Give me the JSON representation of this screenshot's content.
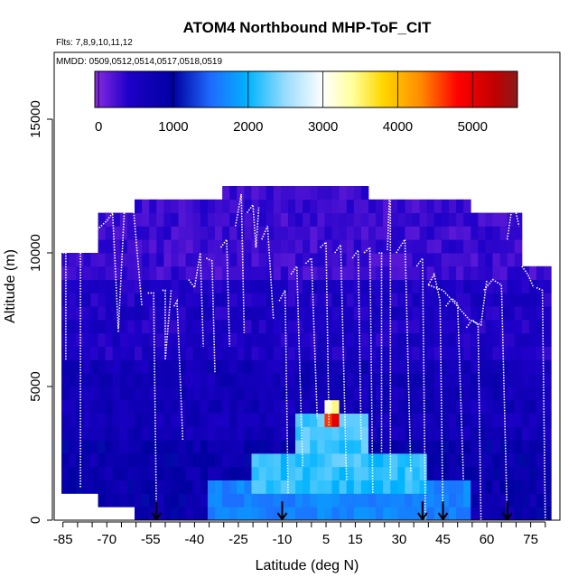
{
  "chart_data": {
    "type": "heatmap",
    "title": "ATOM4 Northbound MHP-ToF_CIT",
    "subtitle_flights": "Flts: 7,8,9,10,11,12",
    "subtitle_dates": "MMDD: 0509,0512,0514,0517,0518,0519",
    "xlabel": "Latitude (deg N)",
    "ylabel": "Altitude (m)",
    "xlim": [
      -88,
      85
    ],
    "ylim": [
      0,
      17500
    ],
    "x_ticks": [
      -85,
      -70,
      -55,
      -40,
      -25,
      -10,
      5,
      15,
      30,
      45,
      60,
      75
    ],
    "x_minor_step": 5,
    "y_ticks": [
      0,
      5000,
      10000,
      15000
    ],
    "colorbar": {
      "ticks": [
        0,
        1000,
        2000,
        3000,
        4000,
        5000
      ],
      "min": -50,
      "max": 5600,
      "stops": [
        {
          "v": -50,
          "c": "#8a2be2"
        },
        {
          "v": 400,
          "c": "#1e00c8"
        },
        {
          "v": 1000,
          "c": "#0000a0"
        },
        {
          "v": 1500,
          "c": "#1e6bff"
        },
        {
          "v": 2000,
          "c": "#00b4ff"
        },
        {
          "v": 2500,
          "c": "#9adcff"
        },
        {
          "v": 3000,
          "c": "#ffffff"
        },
        {
          "v": 3400,
          "c": "#ffff99"
        },
        {
          "v": 3800,
          "c": "#ffd700"
        },
        {
          "v": 4300,
          "c": "#ff8c00"
        },
        {
          "v": 4800,
          "c": "#ff0000"
        },
        {
          "v": 5300,
          "c": "#c00000"
        },
        {
          "v": 5600,
          "c": "#8b1a1a"
        }
      ]
    },
    "coverage": [
      {
        "lat": [
          -86,
          -74
        ],
        "alt": [
          1000,
          10000
        ]
      },
      {
        "lat": [
          -74,
          -60
        ],
        "alt": [
          500,
          11500
        ]
      },
      {
        "lat": [
          -60,
          -30
        ],
        "alt": [
          0,
          12000
        ]
      },
      {
        "lat": [
          -30,
          20
        ],
        "alt": [
          0,
          12500
        ]
      },
      {
        "lat": [
          20,
          55
        ],
        "alt": [
          0,
          12000
        ]
      },
      {
        "lat": [
          55,
          72
        ],
        "alt": [
          0,
          11500
        ]
      },
      {
        "lat": [
          72,
          82
        ],
        "alt": [
          0,
          9500
        ]
      }
    ],
    "hotspots": [
      {
        "lat": 7,
        "alt": 3800,
        "value": 5400,
        "lat_half": 1.5,
        "alt_half": 300
      },
      {
        "lat": 7,
        "alt": 4200,
        "value": 3600,
        "lat_half": 3,
        "alt_half": 400
      },
      {
        "lat": 7,
        "alt": 3000,
        "value": 2400,
        "lat_half": 12,
        "alt_half": 900
      },
      {
        "lat": 10,
        "alt": 1800,
        "value": 2300,
        "lat_half": 30,
        "alt_half": 800
      },
      {
        "lat": 10,
        "alt": 900,
        "value": 1800,
        "lat_half": 45,
        "alt_half": 700
      }
    ],
    "profiles": [
      {
        "lat": [
          -85,
          -84,
          -84
        ],
        "alt": [
          10000,
          10000,
          6000
        ]
      },
      {
        "lat": [
          -80,
          -79,
          -79
        ],
        "alt": [
          10500,
          10500,
          1200
        ]
      },
      {
        "lat": [
          -74,
          -70,
          -68,
          -66
        ],
        "alt": [
          10800,
          11200,
          11500,
          7000
        ]
      },
      {
        "lat": [
          -66,
          -64,
          -61,
          -58
        ],
        "alt": [
          7200,
          11600,
          11800,
          8000
        ]
      },
      {
        "lat": [
          -56,
          -54,
          -53
        ],
        "alt": [
          8500,
          8500,
          0
        ]
      },
      {
        "lat": [
          -51,
          -50,
          -50,
          -48
        ],
        "alt": [
          8600,
          8600,
          6000,
          8600
        ]
      },
      {
        "lat": [
          -47,
          -46,
          -44
        ],
        "alt": [
          8000,
          8200,
          3000
        ]
      },
      {
        "lat": [
          -42,
          -40,
          -38,
          -37
        ],
        "alt": [
          9000,
          8700,
          10000,
          6500
        ]
      },
      {
        "lat": [
          -36,
          -34,
          -33
        ],
        "alt": [
          9800,
          9700,
          5500
        ]
      },
      {
        "lat": [
          -31,
          -29,
          -28
        ],
        "alt": [
          10200,
          10500,
          6500
        ]
      },
      {
        "lat": [
          -26,
          -24,
          -23
        ],
        "alt": [
          11000,
          12200,
          7000
        ]
      },
      {
        "lat": [
          -22,
          -20,
          -19,
          -18
        ],
        "alt": [
          11500,
          11800,
          10200,
          11700
        ]
      },
      {
        "lat": [
          -17,
          -15,
          -13
        ],
        "alt": [
          10500,
          11000,
          7500
        ]
      },
      {
        "lat": [
          -11,
          -9,
          -8
        ],
        "alt": [
          8200,
          8600,
          1000
        ]
      },
      {
        "lat": [
          -7,
          -5,
          -3
        ],
        "alt": [
          9200,
          9500,
          2000
        ]
      },
      {
        "lat": [
          -2,
          0,
          2
        ],
        "alt": [
          9600,
          9800,
          3800
        ]
      },
      {
        "lat": [
          3,
          5,
          6
        ],
        "alt": [
          10200,
          10400,
          3500
        ]
      },
      {
        "lat": [
          8,
          10,
          12
        ],
        "alt": [
          10000,
          10300,
          1500
        ]
      },
      {
        "lat": [
          14,
          16,
          17
        ],
        "alt": [
          9800,
          10100,
          3000
        ]
      },
      {
        "lat": [
          18,
          20,
          21
        ],
        "alt": [
          10000,
          10200,
          1000
        ]
      },
      {
        "lat": [
          23,
          24,
          24
        ],
        "alt": [
          10000,
          10000,
          2500
        ]
      },
      {
        "lat": [
          26,
          27,
          27
        ],
        "alt": [
          10100,
          13000,
          1500
        ]
      },
      {
        "lat": [
          29,
          32,
          34
        ],
        "alt": [
          10000,
          10500,
          1800
        ]
      },
      {
        "lat": [
          36,
          38,
          39
        ],
        "alt": [
          9500,
          9800,
          0
        ]
      },
      {
        "lat": [
          40,
          42,
          44,
          45
        ],
        "alt": [
          8800,
          9200,
          8200,
          0
        ]
      },
      {
        "lat": [
          46,
          48,
          50,
          52
        ],
        "alt": [
          8000,
          8300,
          8100,
          1500
        ]
      },
      {
        "lat": [
          53,
          55,
          57,
          58
        ],
        "alt": [
          7200,
          7500,
          7300,
          0
        ]
      },
      {
        "lat": [
          59,
          62,
          65,
          67
        ],
        "alt": [
          8600,
          9000,
          8800,
          0
        ]
      },
      {
        "lat": [
          67,
          69,
          71
        ],
        "alt": [
          10500,
          12000,
          11000
        ]
      },
      {
        "lat": [
          72,
          74,
          76
        ],
        "alt": [
          9500,
          9200,
          8700
        ]
      },
      {
        "lat": [
          77,
          79,
          80
        ],
        "alt": [
          8700,
          8600,
          0
        ]
      },
      {
        "lat": [
          40,
          45,
          50,
          54,
          58,
          60
        ],
        "alt": [
          8800,
          8600,
          8000,
          7500,
          7300,
          9000
        ]
      }
    ],
    "arrows": [
      {
        "lat": -53,
        "alt_top": 700,
        "alt_bottom": 0
      },
      {
        "lat": -10,
        "alt_top": 700,
        "alt_bottom": 0
      },
      {
        "lat": 38,
        "alt_top": 700,
        "alt_bottom": 0
      },
      {
        "lat": 45,
        "alt_top": 700,
        "alt_bottom": 0
      },
      {
        "lat": 67,
        "alt_top": 700,
        "alt_bottom": 0
      }
    ],
    "grid": false,
    "legend": "top-inside"
  }
}
